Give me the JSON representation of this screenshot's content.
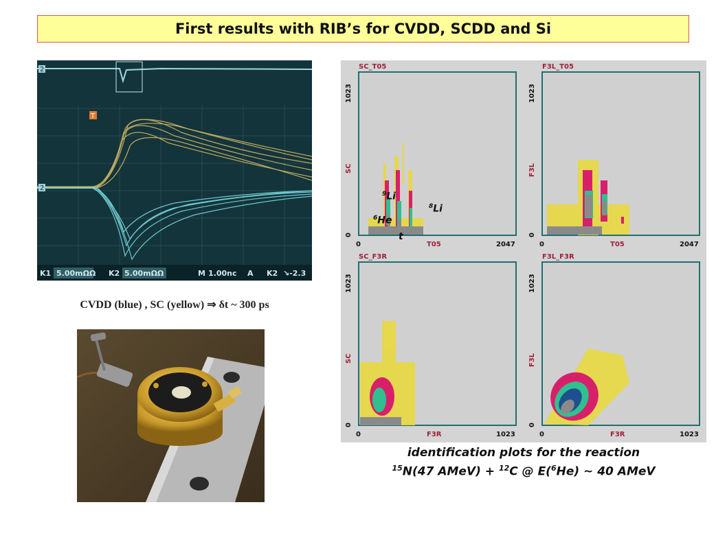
{
  "title": "First results with RIB’s for CVDD, SCDD and Si",
  "scope": {
    "channel_labels": [
      "K1",
      "5.00mΩΩ",
      "K2",
      "5.00mΩΩ",
      "M",
      "1.00nc",
      "A",
      "K2",
      "↘-2.3"
    ],
    "trigger_marker": "T",
    "ch_marker_top": "2",
    "ch_marker_mid": "2"
  },
  "caption_scope": "CVDD (blue) , SC (yellow) ⇒  δt ~ 300 ps",
  "plots": [
    {
      "title": "SC_T05",
      "ylabel": "SC",
      "xlabel": "T05",
      "xmax": "2047",
      "ymax": "1023",
      "min": "0"
    },
    {
      "title": "F3L_T05",
      "ylabel": "F3L",
      "xlabel": "T05",
      "xmax": "2047",
      "ymax": "1023",
      "min": "0"
    },
    {
      "title": "SC_F3R",
      "ylabel": "SC",
      "xlabel": "F3R",
      "xmax": "1023",
      "ymax": "1023",
      "min": "0"
    },
    {
      "title": "F3L_F3R",
      "ylabel": "F3L",
      "xlabel": "F3R",
      "xmax": "1023",
      "ymax": "1023",
      "min": "0"
    }
  ],
  "annotations": {
    "li9_sup": "9",
    "li9": "Li",
    "li8_sup": "8",
    "li8": "Li",
    "he6_sup": "6",
    "he6": "He",
    "t": "t"
  },
  "caption_plots": {
    "line1": "identification plots for the reaction",
    "n_sup": "15",
    "n_text": "N(47 AMeV) + ",
    "c_sup": "12",
    "c_text": "C @ E(",
    "he_sup": "6",
    "he_text": "He) ~ 40 AMeV"
  },
  "colors": {
    "title_bg": "#ffff99",
    "title_border": "#d9534f",
    "plot_frame": "#1f6f6f",
    "plot_text": "#a0203a"
  }
}
